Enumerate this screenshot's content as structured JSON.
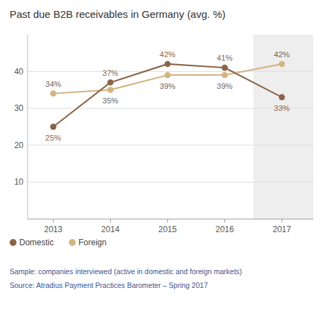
{
  "chart_data": {
    "type": "line",
    "title": "Past due B2B receivables in Germany (avg. %)",
    "x": [
      2013,
      2014,
      2015,
      2016,
      2017
    ],
    "xlim": [
      2012.55,
      2017.55
    ],
    "xticks": [
      2013,
      2014,
      2015,
      2016,
      2017
    ],
    "series": [
      {
        "name": "Domestic",
        "color": "#8B6347",
        "marker": "circle",
        "values": [
          25,
          37,
          42,
          41,
          33
        ],
        "value_labels": [
          "25%",
          "37%",
          "42%",
          "41%",
          "33%"
        ]
      },
      {
        "name": "Foreign",
        "color": "#D4B483",
        "marker": "circle",
        "values": [
          34,
          35,
          39,
          39,
          42
        ],
        "value_labels": [
          "34%",
          "35%",
          "39%",
          "39%",
          "42%"
        ]
      }
    ],
    "ylim": [
      0,
      50
    ],
    "yticks": [
      10,
      20,
      30,
      40
    ],
    "grid": true,
    "legend": "bottom",
    "data_labels": true,
    "annotations": [
      "Sample: companies interviewed (active in domestic and foreign markets)",
      "Source: Atradius Payment Practices Barometer – Spring 2017"
    ]
  }
}
